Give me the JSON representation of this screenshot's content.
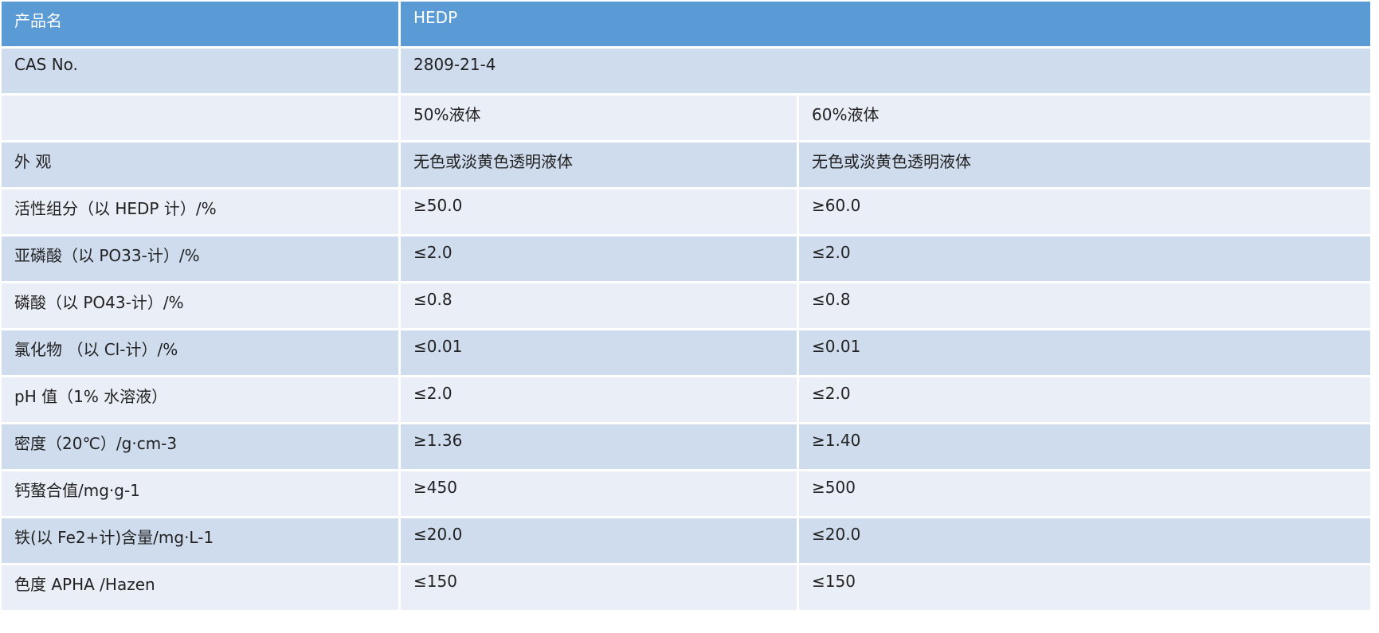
{
  "colors": {
    "header": "#5b9bd5",
    "row_dark": "#cfdcee",
    "row_light": "#e9eef7"
  },
  "header": {
    "label": "产品名",
    "product": "HEDP"
  },
  "cas": {
    "label": "CAS No.",
    "value": "2809-21-4"
  },
  "grades": [
    "50%液体",
    "60%液体"
  ],
  "rows": [
    {
      "label": "外 观",
      "v50": "无色或淡黄色透明液体",
      "v60": "无色或淡黄色透明液体"
    },
    {
      "label": "活性组分（以 HEDP 计）/%",
      "v50": "≥50.0",
      "v60": "≥60.0"
    },
    {
      "label": "亚磷酸（以 PO33-计）/%",
      "v50": "≤2.0",
      "v60": "≤2.0"
    },
    {
      "label": "磷酸（以 PO43-计）/%",
      "v50": "≤0.8",
      "v60": "≤0.8"
    },
    {
      "label": "氯化物 （以 Cl-计）/%",
      "v50": "≤0.01",
      "v60": "≤0.01"
    },
    {
      "label": "pH 值（1% 水溶液）",
      "v50": "≤2.0",
      "v60": "≤2.0"
    },
    {
      "label": "密度（20℃）/g·cm-3",
      "v50": "≥1.36",
      "v60": "≥1.40"
    },
    {
      "label": "钙螯合值/mg·g-1",
      "v50": "≥450",
      "v60": "≥500"
    },
    {
      "label": "铁(以 Fe2+计)含量/mg·L-1",
      "v50": "≤20.0",
      "v60": "≤20.0"
    },
    {
      "label": "色度 APHA /Hazen",
      "v50": "≤150",
      "v60": "≤150"
    }
  ]
}
